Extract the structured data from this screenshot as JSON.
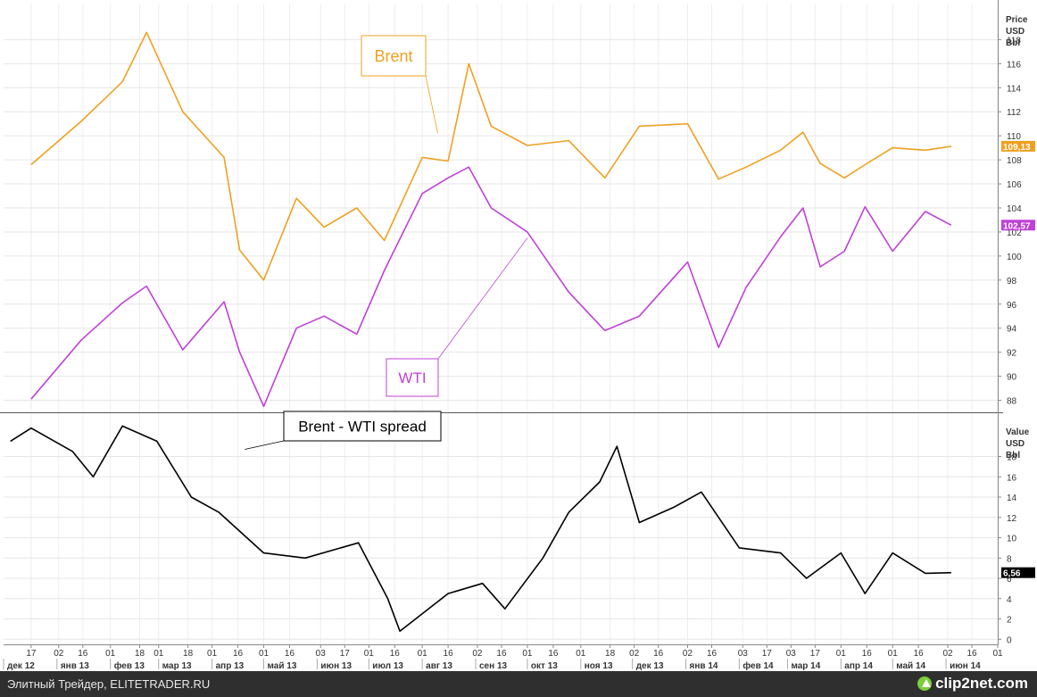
{
  "chart_data": [
    {
      "type": "line",
      "panel": "price",
      "title": "",
      "ylabel": "Price USD Bbl",
      "ylabel_lines": [
        "Price",
        "USD",
        "Bbl"
      ],
      "ylim": [
        87,
        121
      ],
      "yticks": [
        88,
        90,
        92,
        94,
        96,
        98,
        100,
        102,
        104,
        106,
        108,
        110,
        112,
        114,
        116,
        118
      ],
      "grid": true,
      "x": [
        "2012-12-17",
        "2013-01-15",
        "2013-02-08",
        "2013-02-22",
        "2013-03-15",
        "2013-04-08",
        "2013-04-17",
        "2013-05-01",
        "2013-05-20",
        "2013-06-05",
        "2013-06-24",
        "2013-07-10",
        "2013-08-01",
        "2013-08-16",
        "2013-08-28",
        "2013-09-10",
        "2013-10-01",
        "2013-10-25",
        "2013-11-15",
        "2013-12-05",
        "2014-01-02",
        "2014-01-20",
        "2014-02-05",
        "2014-02-25",
        "2014-03-10",
        "2014-03-20",
        "2014-04-03",
        "2014-04-15",
        "2014-05-01",
        "2014-05-20",
        "2014-06-04"
      ],
      "series": [
        {
          "name": "Brent",
          "color": "#f0a020",
          "last_value_label": "109,13",
          "values": [
            107.6,
            111.2,
            114.5,
            118.6,
            112.0,
            108.2,
            100.5,
            98.0,
            104.8,
            102.4,
            104.0,
            101.3,
            108.2,
            107.9,
            116.0,
            110.8,
            109.2,
            109.6,
            106.5,
            110.8,
            111.0,
            106.4,
            107.4,
            108.8,
            110.3,
            107.7,
            106.5,
            107.6,
            109.0,
            108.8,
            109.13
          ]
        },
        {
          "name": "WTI",
          "color": "#c040d8",
          "last_value_label": "102,57",
          "values": [
            88.1,
            93.0,
            96.1,
            97.5,
            92.2,
            96.2,
            92.0,
            87.5,
            94.0,
            95.0,
            93.5,
            98.8,
            105.2,
            106.5,
            107.4,
            104.0,
            102.0,
            97.0,
            93.8,
            95.0,
            99.5,
            92.4,
            97.4,
            101.6,
            104.0,
            99.1,
            100.4,
            104.1,
            100.4,
            103.7,
            102.57
          ]
        }
      ],
      "annotations": [
        {
          "text": "Brent",
          "color": "#f0a020",
          "x": "2013-08-10",
          "y": 110.2
        },
        {
          "text": "WTI",
          "color": "#c040d8",
          "x": "2013-10-01",
          "y": 101.5
        }
      ]
    },
    {
      "type": "line",
      "panel": "spread",
      "title": "",
      "ylabel": "Value USD Bbl",
      "ylabel_lines": [
        "Value",
        "USD",
        "Bbl"
      ],
      "ylim": [
        -0.5,
        22
      ],
      "yticks": [
        0,
        2,
        4,
        6,
        8,
        10,
        12,
        14,
        16,
        18
      ],
      "grid": true,
      "x": [
        "2012-12-05",
        "2012-12-17",
        "2013-01-10",
        "2013-01-22",
        "2013-02-08",
        "2013-02-28",
        "2013-03-20",
        "2013-04-05",
        "2013-05-01",
        "2013-05-25",
        "2013-06-25",
        "2013-07-12",
        "2013-07-19",
        "2013-08-16",
        "2013-09-05",
        "2013-09-18",
        "2013-10-10",
        "2013-10-25",
        "2013-11-12",
        "2013-11-22",
        "2013-12-05",
        "2013-12-25",
        "2014-01-10",
        "2014-02-01",
        "2014-02-25",
        "2014-03-12",
        "2014-04-01",
        "2014-04-15",
        "2014-05-01",
        "2014-05-20",
        "2014-06-04"
      ],
      "series": [
        {
          "name": "Brent - WTI spread",
          "color": "#000000",
          "last_value_label": "6,56",
          "values": [
            19.5,
            20.8,
            18.5,
            16.0,
            21.0,
            19.5,
            14.0,
            12.5,
            8.5,
            8.0,
            9.5,
            4.0,
            0.8,
            4.5,
            5.5,
            3.0,
            8.0,
            12.5,
            15.5,
            19.0,
            11.5,
            13.0,
            14.5,
            9.0,
            8.5,
            6.0,
            8.5,
            4.5,
            8.5,
            6.5,
            6.56
          ]
        }
      ],
      "annotations": [
        {
          "text": "Brent - WTI spread",
          "color": "#000000",
          "x": "2013-04-20",
          "y": 18.7
        }
      ]
    }
  ],
  "x_axis": {
    "day_ticks": [
      {
        "label": "17",
        "date": "2012-12-17"
      },
      {
        "label": "02",
        "date": "2013-01-02"
      },
      {
        "label": "16",
        "date": "2013-01-16"
      },
      {
        "label": "01",
        "date": "2013-02-01"
      },
      {
        "label": "18",
        "date": "2013-02-18"
      },
      {
        "label": "01",
        "date": "2013-03-01"
      },
      {
        "label": "18",
        "date": "2013-03-18"
      },
      {
        "label": "01",
        "date": "2013-04-01"
      },
      {
        "label": "16",
        "date": "2013-04-16"
      },
      {
        "label": "01",
        "date": "2013-05-01"
      },
      {
        "label": "16",
        "date": "2013-05-16"
      },
      {
        "label": "03",
        "date": "2013-06-03"
      },
      {
        "label": "17",
        "date": "2013-06-17"
      },
      {
        "label": "01",
        "date": "2013-07-01"
      },
      {
        "label": "16",
        "date": "2013-07-16"
      },
      {
        "label": "01",
        "date": "2013-08-01"
      },
      {
        "label": "16",
        "date": "2013-08-16"
      },
      {
        "label": "02",
        "date": "2013-09-02"
      },
      {
        "label": "16",
        "date": "2013-09-16"
      },
      {
        "label": "01",
        "date": "2013-10-01"
      },
      {
        "label": "16",
        "date": "2013-10-16"
      },
      {
        "label": "01",
        "date": "2013-11-01"
      },
      {
        "label": "18",
        "date": "2013-11-18"
      },
      {
        "label": "02",
        "date": "2013-12-02"
      },
      {
        "label": "16",
        "date": "2013-12-16"
      },
      {
        "label": "02",
        "date": "2014-01-02"
      },
      {
        "label": "16",
        "date": "2014-01-16"
      },
      {
        "label": "03",
        "date": "2014-02-03"
      },
      {
        "label": "17",
        "date": "2014-02-17"
      },
      {
        "label": "03",
        "date": "2014-03-03"
      },
      {
        "label": "17",
        "date": "2014-03-17"
      },
      {
        "label": "01",
        "date": "2014-04-01"
      },
      {
        "label": "16",
        "date": "2014-04-16"
      },
      {
        "label": "01",
        "date": "2014-05-01"
      },
      {
        "label": "16",
        "date": "2014-05-16"
      },
      {
        "label": "02",
        "date": "2014-06-02"
      },
      {
        "label": "16",
        "date": "2014-06-16"
      },
      {
        "label": "01",
        "date": "2014-07-01"
      }
    ],
    "month_labels": [
      {
        "label": "дек 12",
        "date": "2012-12-01"
      },
      {
        "label": "янв 13",
        "date": "2013-01-01"
      },
      {
        "label": "фев 13",
        "date": "2013-02-01"
      },
      {
        "label": "мар 13",
        "date": "2013-03-01"
      },
      {
        "label": "апр 13",
        "date": "2013-04-01"
      },
      {
        "label": "май 13",
        "date": "2013-05-01"
      },
      {
        "label": "июн 13",
        "date": "2013-06-01"
      },
      {
        "label": "июл 13",
        "date": "2013-07-01"
      },
      {
        "label": "авг 13",
        "date": "2013-08-01"
      },
      {
        "label": "сен 13",
        "date": "2013-09-01"
      },
      {
        "label": "окт 13",
        "date": "2013-10-01"
      },
      {
        "label": "ноя 13",
        "date": "2013-11-01"
      },
      {
        "label": "дек 13",
        "date": "2013-12-01"
      },
      {
        "label": "янв 14",
        "date": "2014-01-01"
      },
      {
        "label": "фев 14",
        "date": "2014-02-01"
      },
      {
        "label": "мар 14",
        "date": "2014-03-01"
      },
      {
        "label": "апр 14",
        "date": "2014-04-01"
      },
      {
        "label": "май 14",
        "date": "2014-05-01"
      },
      {
        "label": "июн 14",
        "date": "2014-06-01"
      }
    ]
  },
  "footer": {
    "caption": "Элитный Трейдер, ELITETRADER.RU",
    "logo": "clip2net.com",
    "logo_icon": "clip2net-logo-icon"
  },
  "colors": {
    "brent": "#f0a020",
    "wti": "#c040d8",
    "spread": "#000000",
    "background": "#ffffff",
    "grid": "#e4e4e4",
    "footer_bg": "#2f2f2f"
  }
}
